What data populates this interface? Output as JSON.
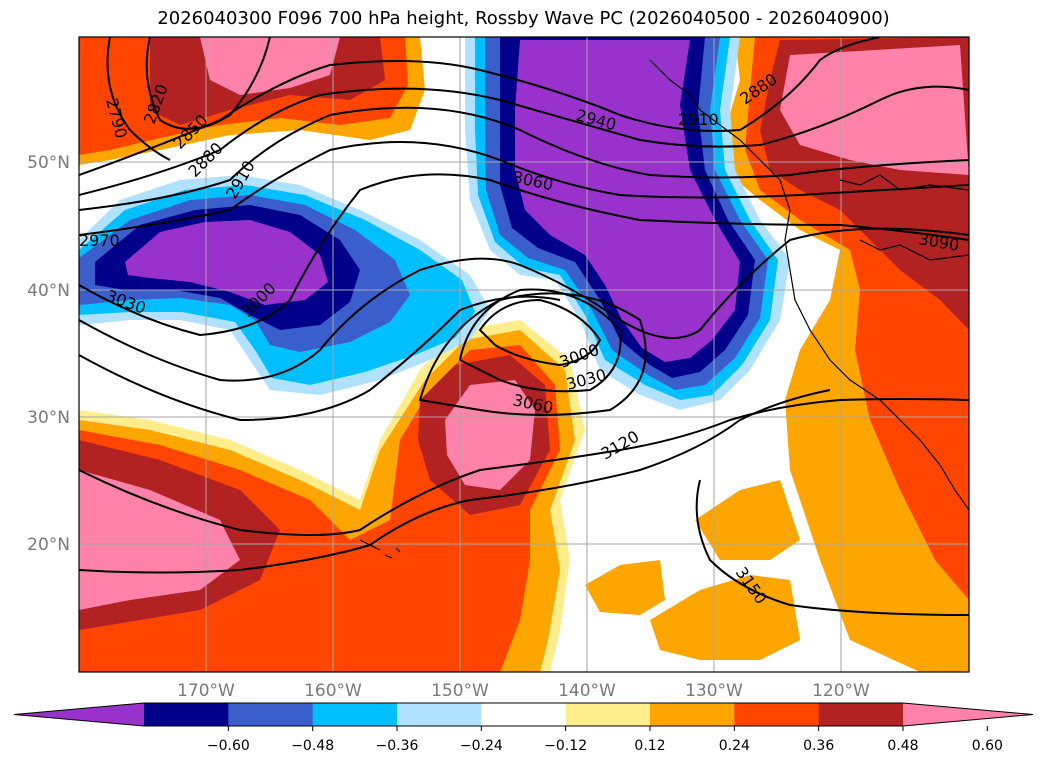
{
  "title": "2026040300 F096 700 hPa height, Rossby Wave PC (2026040500 - 2026040900)",
  "map": {
    "lat_labels": [
      "50°N",
      "40°N",
      "30°N",
      "20°N"
    ],
    "lon_labels": [
      "170°W",
      "160°W",
      "150°W",
      "140°W",
      "130°W",
      "120°W"
    ],
    "contour_labels": [
      "2790",
      "2820",
      "2850",
      "2880",
      "2910",
      "2970",
      "3030",
      "3000",
      "2940",
      "2910",
      "2880",
      "3060",
      "3000",
      "3030",
      "3060",
      "3120",
      "3150",
      "3090"
    ],
    "gridlines": true
  },
  "colorbar": {
    "colors": [
      "#9932cc",
      "#00008b",
      "#3a5fcd",
      "#00bfff",
      "#b0e2ff",
      "#ffffff",
      "#ffec8b",
      "#ffa500",
      "#ff4500",
      "#b22222",
      "#ff82ab"
    ],
    "tick_labels": [
      "-0.60",
      "-0.48",
      "-0.36",
      "-0.24",
      "-0.12",
      "0.12",
      "0.24",
      "0.36",
      "0.48",
      "0.60"
    ],
    "extend": "both"
  }
}
